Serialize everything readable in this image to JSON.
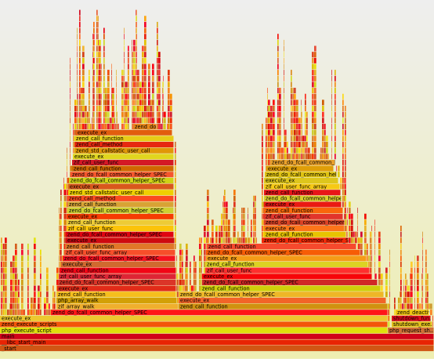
{
  "frames": [
    "_start",
    "__libc_start_main",
    "main",
    "php_execute_script",
    "php_request_sh...",
    "zend_execute_scripts",
    "shutdown_exe...",
    "execute_ex",
    "shutdown_fun...",
    "zend_do_fcall_common_helper_SPEC",
    "zend_deactiv...",
    "zif_array_walk",
    "zend_call_function",
    "php_array_walk",
    "execute_ex",
    "zend_call_function",
    "zend_do_fcall_common_helper_SPEC",
    "execute_ex",
    "zend_call_function",
    "zend_do_fcall_common_helper_SPEC",
    "zend_do_fcall_common_helper_SPEC",
    "zif_call_user_func_array",
    "execute_ex",
    "zend_call_function",
    "zif_call_user_func",
    "execute_ex",
    "zend_call_function",
    "zend_do_fcall_common_helper_SPEC",
    "execute_ex",
    "zif_call_user_func_array",
    "zend_do_fcall_common_helper_SPEC",
    "zend_call_function",
    "zend_call_function",
    "execute_ex",
    "zend_do_fcall_common_helper_SPEC",
    "zend_do_fcall_common_helper_SPEC",
    "zend_call_function",
    "zif_call_user_func",
    "execute_ex",
    "zend_call_function",
    "zend_do_fcall_common_helper_SPEC",
    "execute_ex",
    "zif_call_user_func",
    "zend_do_fcall_common_helper_SPEC",
    "zend_call_function",
    "zend_call_function",
    "execute_ex",
    "zend_call_method",
    "zend_do_fcall_common_helper_SPEC",
    "zend_std_callstatic_user_call",
    "zend_call_function",
    "execute_ex",
    "zif_call_user_func_array",
    "zend_do_fcall_common_helper_SPEC",
    "execute_ex",
    "zend_do_fcall_common_helper_SPEC",
    "zend_do_fcall_common_helper_SPEC",
    "zend_call_function",
    "execute_ex",
    "zif_call_user_func",
    "zend_do_fcall_common_helper_SPEC",
    "execute_ex",
    "zend_std_callstatic_user_call",
    "zend_call_method",
    "zend_call_function",
    "execute_ex",
    "zend_do..."
  ]
}
